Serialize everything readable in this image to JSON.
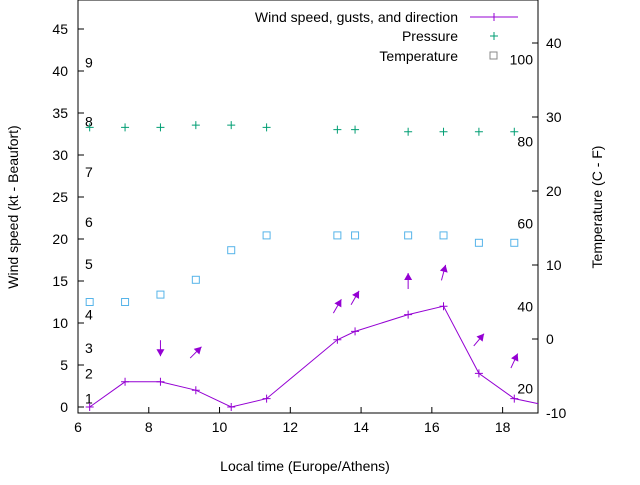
{
  "chart_data": {
    "type": "line",
    "xlabel": "Local time (Europe/Athens)",
    "ylabel": "Wind speed (kt - Beaufort)",
    "y2label": "Temperature (C - F)",
    "xlim": [
      6,
      19
    ],
    "ylim": [
      0,
      45
    ],
    "y2lim": [
      -10,
      41
    ],
    "xticks": [
      6,
      8,
      10,
      12,
      14,
      16,
      18
    ],
    "yticks": [
      0,
      5,
      10,
      15,
      20,
      25,
      30,
      35,
      40,
      45
    ],
    "y2ticks": [
      -10,
      0,
      10,
      20,
      30,
      40
    ],
    "beaufort_labels": [
      {
        "label": "1",
        "kt": 1
      },
      {
        "label": "2",
        "kt": 4
      },
      {
        "label": "3",
        "kt": 7
      },
      {
        "label": "4",
        "kt": 11
      },
      {
        "label": "5",
        "kt": 17
      },
      {
        "label": "6",
        "kt": 22
      },
      {
        "label": "7",
        "kt": 28
      },
      {
        "label": "8",
        "kt": 34
      },
      {
        "label": "9",
        "kt": 41
      }
    ],
    "fahrenheit_labels": [
      {
        "label": "20",
        "c": -6.7
      },
      {
        "label": "40",
        "c": 4.4
      },
      {
        "label": "60",
        "c": 15.6
      },
      {
        "label": "80",
        "c": 26.7
      },
      {
        "label": "100",
        "c": 37.8
      }
    ],
    "legend": [
      "Wind speed, gusts, and direction",
      "Pressure",
      "Temperature"
    ],
    "legend_position": "top-right",
    "series": [
      {
        "name": "Wind speed, gusts, and direction",
        "color": "#9400d3",
        "x": [
          6.33,
          7.33,
          8.33,
          9.33,
          10.33,
          11.33,
          13.33,
          13.83,
          15.33,
          16.33,
          17.33,
          18.33,
          19
        ],
        "values": [
          0,
          3,
          3,
          2,
          0,
          1,
          8,
          9,
          11,
          12,
          4,
          1,
          0.4
        ]
      },
      {
        "name": "Gusts",
        "color": "#9400d3",
        "x": [
          8.33,
          9.33,
          13.33,
          13.83,
          15.33,
          16.33,
          17.33,
          18.33
        ],
        "values": [
          7,
          6.5,
          12,
          13,
          15,
          16,
          8,
          5.5
        ],
        "direction_deg": [
          180,
          45,
          30,
          30,
          0,
          15,
          40,
          25
        ]
      },
      {
        "name": "Pressure",
        "color": "#009e73",
        "axis": "y2",
        "x": [
          6.33,
          7.33,
          8.33,
          9.33,
          10.33,
          11.33,
          13.33,
          13.83,
          15.33,
          16.33,
          17.33,
          18.33
        ],
        "values": [
          28.6,
          28.6,
          28.6,
          28.9,
          28.9,
          28.6,
          28.3,
          28.3,
          28.0,
          28.0,
          28.0,
          28.0
        ]
      },
      {
        "name": "Temperature",
        "color": "#56b4e9",
        "axis": "y2",
        "x": [
          6.33,
          7.33,
          8.33,
          9.33,
          10.33,
          11.33,
          13.33,
          13.83,
          15.33,
          16.33,
          17.33,
          18.33
        ],
        "values": [
          5,
          5,
          6,
          8,
          12,
          14,
          14,
          14,
          14,
          14,
          13,
          13
        ]
      }
    ]
  }
}
